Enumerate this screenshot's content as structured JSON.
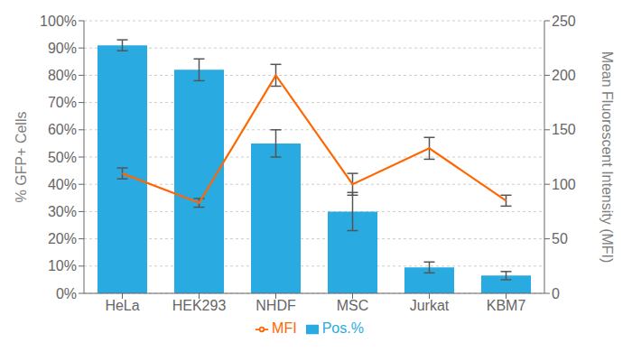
{
  "chart_data": {
    "type": "bar",
    "categories": [
      "HeLa",
      "HEK293",
      "NHDF",
      "MSC",
      "Jurkat",
      "KBM7"
    ],
    "series": [
      {
        "name": "Pos.%",
        "type": "bar",
        "color": "#29ABE2",
        "values": [
          91,
          82,
          55,
          30,
          9.5,
          6.5
        ],
        "errors": [
          2,
          4,
          5,
          7,
          2,
          1.5
        ]
      },
      {
        "name": "MFI",
        "type": "line",
        "axis": "y2",
        "color": "#FF6600",
        "values": [
          110,
          83,
          200,
          100,
          133,
          85
        ],
        "errors": [
          5,
          4,
          10,
          10,
          10,
          5
        ]
      }
    ],
    "ylabel": "% GFP+ Cells",
    "y2label": "Mean Fluorescent Intensity (MFI)",
    "ylim": [
      0,
      100
    ],
    "yticks": [
      {
        "value": 0,
        "label": "0%"
      },
      {
        "value": 10,
        "label": "10%"
      },
      {
        "value": 20,
        "label": "20%"
      },
      {
        "value": 30,
        "label": "30%"
      },
      {
        "value": 40,
        "label": "40%"
      },
      {
        "value": 50,
        "label": "50%"
      },
      {
        "value": 60,
        "label": "60%"
      },
      {
        "value": 70,
        "label": "70%"
      },
      {
        "value": 80,
        "label": "80%"
      },
      {
        "value": 90,
        "label": "90%"
      },
      {
        "value": 100,
        "label": "100%"
      }
    ],
    "y2lim": [
      0,
      250
    ],
    "y2ticks": [
      0,
      50,
      100,
      150,
      200,
      250
    ],
    "grid": true,
    "legend": "bottom"
  }
}
